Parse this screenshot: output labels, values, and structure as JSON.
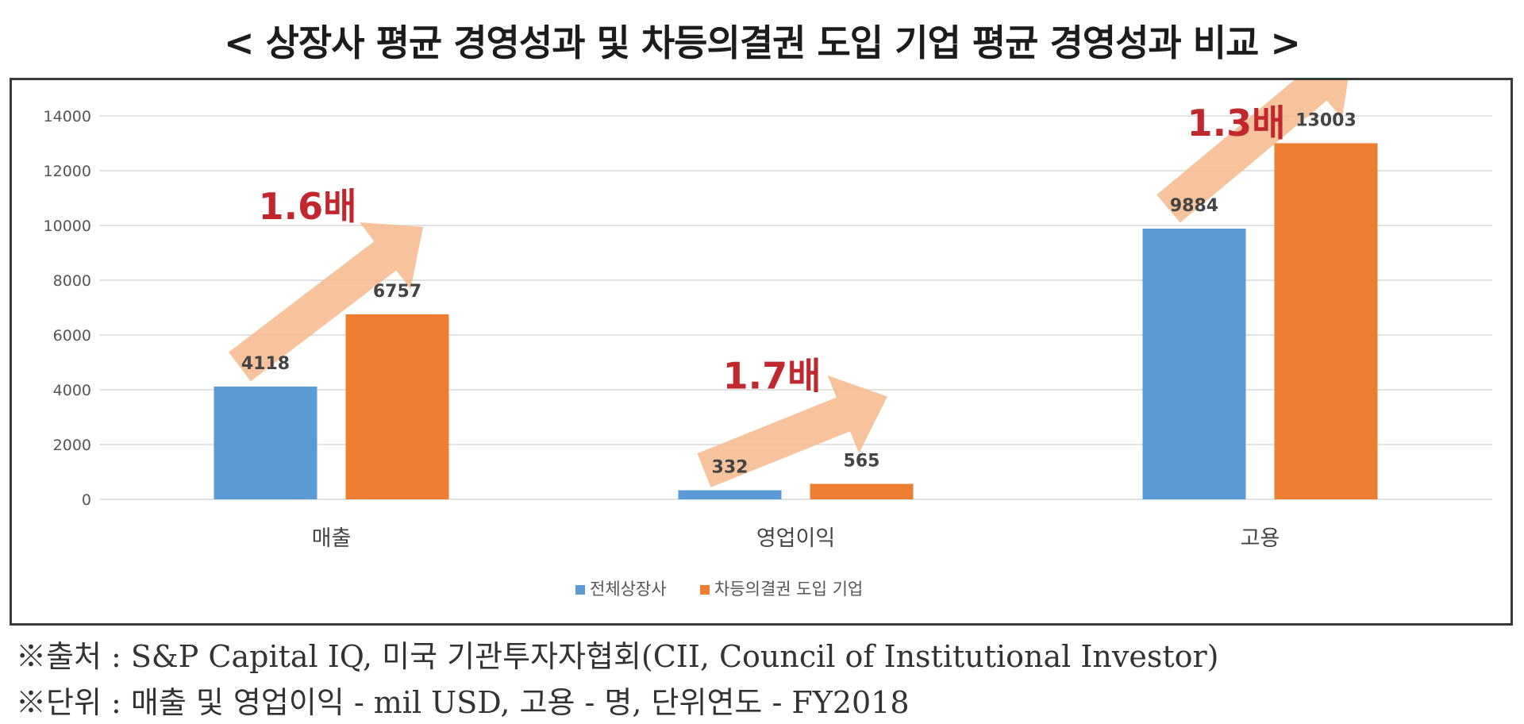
{
  "title": "< 상장사 평균 경영성과 및 차등의결권 도입 기업 평균 경영성과 비교 >",
  "chart_data": {
    "type": "bar",
    "categories": [
      "매출",
      "영업이익",
      "고용"
    ],
    "series": [
      {
        "name": "전체상장사",
        "values": [
          4118,
          332,
          9884
        ],
        "color": "#5b9bd5"
      },
      {
        "name": "차등의결권 도입 기업",
        "values": [
          6757,
          565,
          13003
        ],
        "color": "#ed7d31"
      }
    ],
    "ylim": [
      0,
      14000
    ],
    "yticks": [
      "0",
      "2000",
      "4000",
      "6000",
      "8000",
      "10000",
      "12000",
      "14000"
    ],
    "grid": true,
    "legend": "bottom-center",
    "annotations": [
      "1.6배",
      "1.7배",
      "1.3배"
    ],
    "annotation_color": "#c0282d",
    "arrow_color": "#f5b98c"
  },
  "notes": [
    "※출처 : S&P Capital IQ, 미국 기관투자자협회(CII, Council of Institutional Investor)",
    "※단위 : 매출 및 영업이익 - mil USD, 고용 - 명, 단위연도 - FY2018"
  ]
}
